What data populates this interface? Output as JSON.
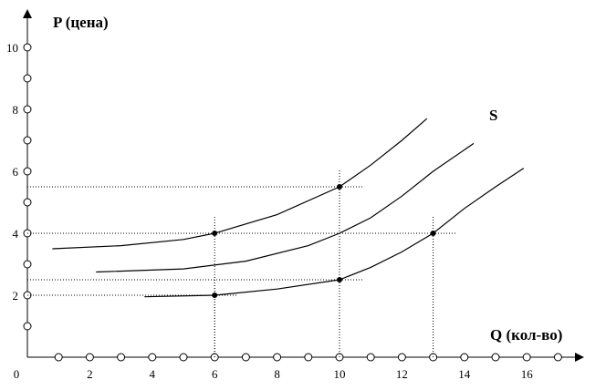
{
  "chart_data": {
    "type": "line",
    "y_label": "P (цена)",
    "x_label": "Q (кол-во)",
    "annotation": "S",
    "xlim": [
      0,
      17.8
    ],
    "ylim": [
      0,
      11.3
    ],
    "xticks": [
      0,
      2,
      4,
      6,
      8,
      10,
      12,
      14,
      16
    ],
    "yticks": [
      2,
      4,
      6,
      8,
      10
    ],
    "xticks_minor": [
      1,
      2,
      3,
      4,
      5,
      6,
      7,
      8,
      9,
      10,
      11,
      12,
      13,
      14,
      15,
      16,
      17
    ],
    "yticks_minor": [
      1,
      2,
      3,
      4,
      5,
      6,
      7,
      8,
      9,
      10
    ],
    "series": [
      {
        "color": "#000000",
        "x": [
          0.8,
          3,
          5,
          6,
          8,
          10,
          11,
          12,
          12.8
        ],
        "values": [
          3.5,
          3.6,
          3.8,
          4.0,
          4.6,
          5.5,
          6.2,
          7.0,
          7.7
        ]
      },
      {
        "color": "#000000",
        "x": [
          2.2,
          5,
          7,
          9,
          10,
          11,
          12,
          13,
          14.3
        ],
        "values": [
          2.75,
          2.85,
          3.1,
          3.6,
          4.0,
          4.5,
          5.2,
          6.0,
          6.9
        ]
      },
      {
        "color": "#000000",
        "x": [
          3.75,
          6,
          8,
          10,
          11,
          12,
          13,
          14,
          15,
          15.9
        ],
        "values": [
          1.95,
          2.0,
          2.2,
          2.5,
          2.9,
          3.4,
          4.0,
          4.8,
          5.5,
          6.1
        ]
      }
    ],
    "points": {
      "x": [
        6,
        10,
        13,
        6,
        10
      ],
      "values": [
        4,
        5.5,
        4,
        2,
        2.5
      ]
    }
  }
}
